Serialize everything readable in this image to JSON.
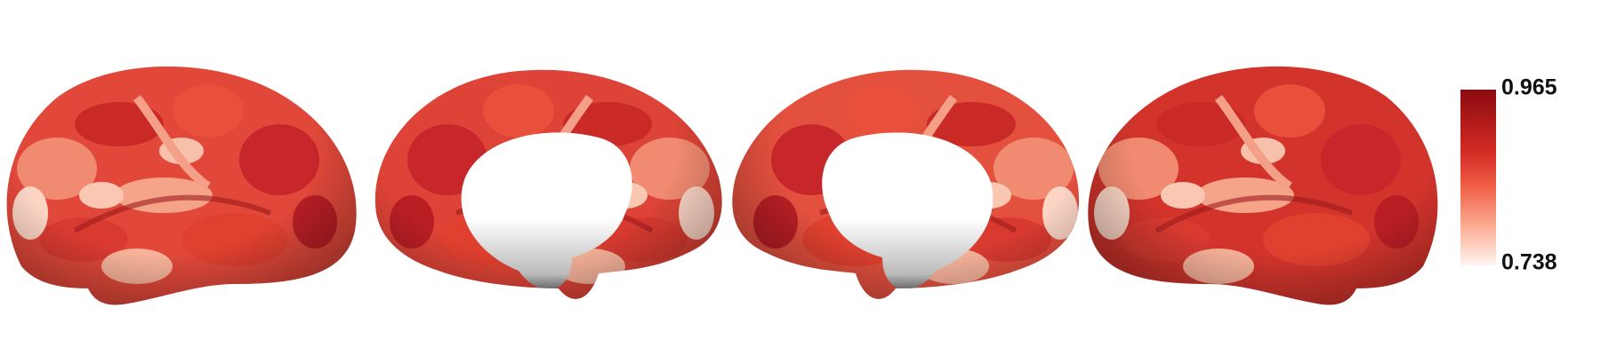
{
  "colorbar": {
    "max": "0.965",
    "min": "0.738"
  }
}
